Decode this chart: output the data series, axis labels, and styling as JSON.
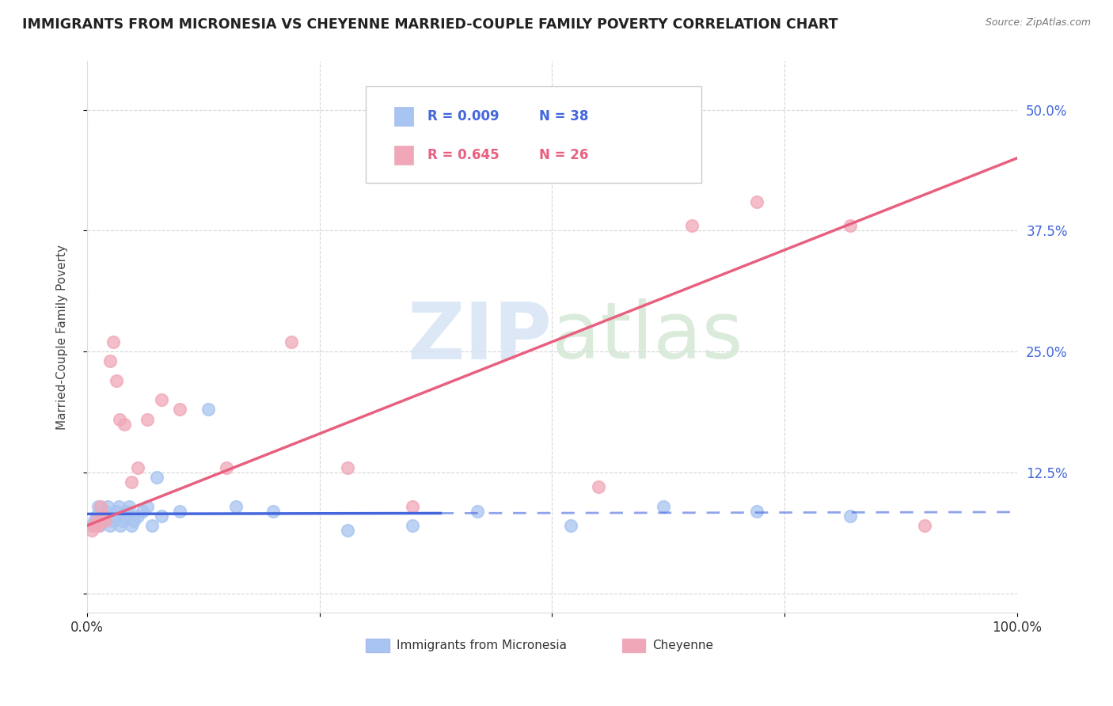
{
  "title": "IMMIGRANTS FROM MICRONESIA VS CHEYENNE MARRIED-COUPLE FAMILY POVERTY CORRELATION CHART",
  "source": "Source: ZipAtlas.com",
  "ylabel": "Married-Couple Family Poverty",
  "xlim": [
    0.0,
    1.0
  ],
  "ylim": [
    -0.02,
    0.55
  ],
  "xticks": [
    0.0,
    0.25,
    0.5,
    0.75,
    1.0
  ],
  "xticklabels": [
    "0.0%",
    "",
    "",
    "",
    "100.0%"
  ],
  "yticks": [
    0.0,
    0.125,
    0.25,
    0.375,
    0.5
  ],
  "yticklabels": [
    "",
    "12.5%",
    "25.0%",
    "37.5%",
    "50.0%"
  ],
  "legend_label1": "Immigrants from Micronesia",
  "legend_label2": "Cheyenne",
  "R1": "0.009",
  "N1": "38",
  "R2": "0.645",
  "N2": "26",
  "blue_color": "#a8c4f0",
  "pink_color": "#f0a8b8",
  "blue_line_color": "#4466dd",
  "pink_line_color": "#e86080",
  "blue_line_solid_end": 0.38,
  "scatter_blue_x": [
    0.005,
    0.008,
    0.01,
    0.012,
    0.014,
    0.016,
    0.018,
    0.02,
    0.022,
    0.025,
    0.028,
    0.03,
    0.032,
    0.034,
    0.036,
    0.038,
    0.04,
    0.042,
    0.045,
    0.048,
    0.05,
    0.055,
    0.06,
    0.065,
    0.07,
    0.075,
    0.08,
    0.1,
    0.13,
    0.16,
    0.2,
    0.28,
    0.35,
    0.42,
    0.52,
    0.62,
    0.72,
    0.82
  ],
  "scatter_blue_y": [
    0.07,
    0.075,
    0.08,
    0.09,
    0.07,
    0.075,
    0.08,
    0.085,
    0.09,
    0.07,
    0.075,
    0.08,
    0.085,
    0.09,
    0.07,
    0.075,
    0.08,
    0.085,
    0.09,
    0.07,
    0.075,
    0.08,
    0.085,
    0.09,
    0.07,
    0.12,
    0.08,
    0.085,
    0.19,
    0.09,
    0.085,
    0.065,
    0.07,
    0.085,
    0.07,
    0.09,
    0.085,
    0.08
  ],
  "scatter_pink_x": [
    0.005,
    0.008,
    0.01,
    0.012,
    0.015,
    0.018,
    0.02,
    0.025,
    0.028,
    0.032,
    0.035,
    0.04,
    0.048,
    0.055,
    0.065,
    0.08,
    0.1,
    0.15,
    0.22,
    0.28,
    0.35,
    0.55,
    0.65,
    0.72,
    0.82,
    0.9
  ],
  "scatter_pink_y": [
    0.065,
    0.07,
    0.075,
    0.07,
    0.09,
    0.08,
    0.075,
    0.24,
    0.26,
    0.22,
    0.18,
    0.175,
    0.115,
    0.13,
    0.18,
    0.2,
    0.19,
    0.13,
    0.26,
    0.13,
    0.09,
    0.11,
    0.38,
    0.405,
    0.38,
    0.07
  ]
}
